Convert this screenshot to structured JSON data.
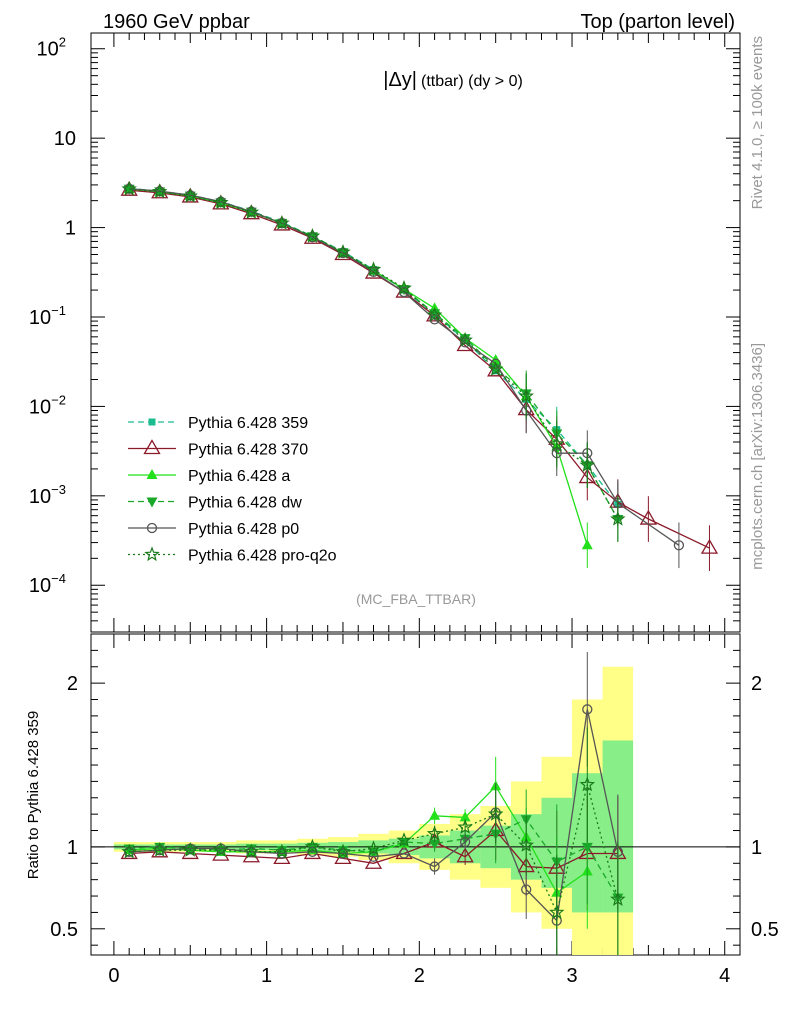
{
  "header": {
    "left": "1960 GeV ppbar",
    "right": "Top (parton level)"
  },
  "side_text": {
    "version": "Rivet 4.1.0, ≥ 100k events",
    "source": "mcplots.cern.ch [arXiv:1306.3436]"
  },
  "chart_data": [
    {
      "type": "line",
      "title_main": "|Δy|",
      "title_sub": "(ttbar) (dy > 0)",
      "analysis_label": "(MC_FBA_TTBAR)",
      "yscale": "log",
      "xlim": [
        -0.15,
        4.1
      ],
      "ylim": [
        3e-05,
        150
      ],
      "x_ticks": [
        "0",
        "1",
        "2",
        "3",
        "4"
      ],
      "y_ticks": [
        {
          "value": 100,
          "base": "10",
          "exp": "2"
        },
        {
          "value": 10,
          "base": "10",
          "exp": ""
        },
        {
          "value": 1,
          "base": "1",
          "exp": ""
        },
        {
          "value": 0.1,
          "base": "10",
          "exp": "−1"
        },
        {
          "value": 0.01,
          "base": "10",
          "exp": "−2"
        },
        {
          "value": 0.001,
          "base": "10",
          "exp": "−3"
        },
        {
          "value": 0.0001,
          "base": "10",
          "exp": "−4"
        }
      ],
      "series": [
        {
          "name": "Pythia 6.428 359",
          "color": "#1abc8f",
          "dash": "6,4",
          "marker": "square",
          "x": [
            0.1,
            0.3,
            0.5,
            0.7,
            0.9,
            1.1,
            1.3,
            1.5,
            1.7,
            1.9,
            2.1,
            2.3,
            2.5,
            2.7,
            2.9,
            3.1,
            3.3
          ],
          "y": [
            2.75,
            2.55,
            2.3,
            1.95,
            1.53,
            1.15,
            0.8,
            0.54,
            0.34,
            0.2,
            0.108,
            0.055,
            0.025,
            0.012,
            0.0055,
            0.0022,
            0.0008
          ]
        },
        {
          "name": "Pythia 6.428 370",
          "color": "#8b1a2b",
          "dash": "",
          "marker": "triangle-open",
          "x": [
            0.1,
            0.3,
            0.5,
            0.7,
            0.9,
            1.1,
            1.3,
            1.5,
            1.7,
            1.9,
            2.1,
            2.3,
            2.5,
            2.7,
            2.9,
            3.1,
            3.3,
            3.5,
            3.9
          ],
          "y": [
            2.62,
            2.45,
            2.2,
            1.84,
            1.43,
            1.07,
            0.76,
            0.5,
            0.31,
            0.19,
            0.103,
            0.048,
            0.025,
            0.0092,
            0.0043,
            0.0016,
            0.00085,
            0.00055,
            0.00026
          ]
        },
        {
          "name": "Pythia 6.428 a",
          "color": "#22e01a",
          "dash": "",
          "marker": "triangle",
          "x": [
            0.1,
            0.3,
            0.5,
            0.7,
            0.9,
            1.1,
            1.3,
            1.5,
            1.7,
            1.9,
            2.1,
            2.3,
            2.5,
            2.7,
            2.9,
            3.1
          ],
          "y": [
            2.7,
            2.52,
            2.26,
            1.9,
            1.49,
            1.12,
            0.79,
            0.52,
            0.33,
            0.205,
            0.125,
            0.058,
            0.033,
            0.013,
            0.0035,
            0.00028
          ]
        },
        {
          "name": "Pythia 6.428 dw",
          "color": "#1aa82a",
          "dash": "6,4",
          "marker": "triangle-down",
          "x": [
            0.1,
            0.3,
            0.5,
            0.7,
            0.9,
            1.1,
            1.3,
            1.5,
            1.7,
            1.9,
            2.1,
            2.3,
            2.5,
            2.7,
            2.9,
            3.1,
            3.3
          ],
          "y": [
            2.72,
            2.54,
            2.28,
            1.92,
            1.51,
            1.13,
            0.8,
            0.53,
            0.33,
            0.205,
            0.11,
            0.058,
            0.027,
            0.014,
            0.005,
            0.0022,
            0.00055
          ]
        },
        {
          "name": "Pythia 6.428 p0",
          "color": "#555555",
          "dash": "",
          "marker": "circle-open",
          "x": [
            0.1,
            0.3,
            0.5,
            0.7,
            0.9,
            1.1,
            1.3,
            1.5,
            1.7,
            1.9,
            2.1,
            2.3,
            2.5,
            2.7,
            2.9,
            3.1,
            3.3,
            3.7
          ],
          "y": [
            2.72,
            2.55,
            2.3,
            1.95,
            1.51,
            1.12,
            0.78,
            0.52,
            0.32,
            0.19,
            0.094,
            0.052,
            0.03,
            0.009,
            0.003,
            0.003,
            0.00083,
            0.00028
          ]
        },
        {
          "name": "Pythia 6.428 pro-q2o",
          "color": "#1a7a1a",
          "dash": "2,3",
          "marker": "star",
          "x": [
            0.1,
            0.3,
            0.5,
            0.7,
            0.9,
            1.1,
            1.3,
            1.5,
            1.7,
            1.9,
            2.1,
            2.3,
            2.5,
            2.7,
            2.9,
            3.1,
            3.3
          ],
          "y": [
            2.7,
            2.52,
            2.25,
            1.9,
            1.48,
            1.12,
            0.8,
            0.53,
            0.34,
            0.21,
            0.105,
            0.055,
            0.026,
            0.013,
            0.0038,
            0.0022,
            0.00055
          ]
        }
      ]
    },
    {
      "type": "line",
      "ylabel": "Ratio to Pythia 6.428 359",
      "ylim": [
        0.34,
        2.3
      ],
      "xlim": [
        -0.15,
        4.1
      ],
      "x_ticks": [
        "0",
        "1",
        "2",
        "3",
        "4"
      ],
      "y_ticks": [
        "0.5",
        "1",
        "2"
      ],
      "reference_line": 1,
      "band_edges": [
        0.0,
        0.2,
        0.4,
        0.6,
        0.8,
        1.0,
        1.2,
        1.4,
        1.6,
        1.8,
        2.0,
        2.2,
        2.4,
        2.6,
        2.8,
        3.0,
        3.2,
        3.4
      ],
      "band_inner": [
        [
          0.985,
          1.015
        ],
        [
          0.985,
          1.015
        ],
        [
          0.985,
          1.015
        ],
        [
          0.985,
          1.015
        ],
        [
          0.98,
          1.02
        ],
        [
          0.98,
          1.02
        ],
        [
          0.975,
          1.025
        ],
        [
          0.97,
          1.03
        ],
        [
          0.96,
          1.04
        ],
        [
          0.95,
          1.05
        ],
        [
          0.93,
          1.07
        ],
        [
          0.9,
          1.1
        ],
        [
          0.87,
          1.13
        ],
        [
          0.8,
          1.2
        ],
        [
          0.75,
          1.3
        ],
        [
          0.6,
          1.45
        ],
        [
          0.6,
          1.65
        ]
      ],
      "band_outer": [
        [
          0.97,
          1.03
        ],
        [
          0.97,
          1.03
        ],
        [
          0.97,
          1.03
        ],
        [
          0.97,
          1.03
        ],
        [
          0.96,
          1.04
        ],
        [
          0.96,
          1.04
        ],
        [
          0.95,
          1.05
        ],
        [
          0.94,
          1.06
        ],
        [
          0.92,
          1.08
        ],
        [
          0.9,
          1.1
        ],
        [
          0.86,
          1.14
        ],
        [
          0.8,
          1.2
        ],
        [
          0.75,
          1.25
        ],
        [
          0.6,
          1.4
        ],
        [
          0.5,
          1.55
        ],
        [
          0.34,
          1.9
        ],
        [
          0.34,
          2.1
        ]
      ],
      "series": [
        {
          "name": "Pythia 6.428 370",
          "color": "#8b1a2b",
          "dash": "",
          "marker": "triangle-open",
          "x": [
            0.1,
            0.3,
            0.5,
            0.7,
            0.9,
            1.1,
            1.3,
            1.5,
            1.7,
            1.9,
            2.1,
            2.3,
            2.5,
            2.7,
            2.9,
            3.1,
            3.3
          ],
          "y": [
            0.96,
            0.97,
            0.96,
            0.95,
            0.94,
            0.93,
            0.96,
            0.93,
            0.9,
            0.96,
            1.03,
            0.94,
            1.1,
            0.88,
            0.87,
            0.96,
            0.96
          ]
        },
        {
          "name": "Pythia 6.428 a",
          "color": "#22e01a",
          "dash": "",
          "marker": "triangle",
          "x": [
            0.1,
            0.3,
            0.5,
            0.7,
            0.9,
            1.1,
            1.3,
            1.5,
            1.7,
            1.9,
            2.1,
            2.3,
            2.5,
            2.7,
            2.9,
            3.1
          ],
          "y": [
            0.98,
            0.99,
            0.98,
            0.97,
            0.97,
            0.97,
            0.98,
            0.96,
            0.97,
            1.02,
            1.19,
            1.18,
            1.37,
            1.06,
            0.72,
            0.85
          ]
        },
        {
          "name": "Pythia 6.428 dw",
          "color": "#1aa82a",
          "dash": "6,4",
          "marker": "triangle-down",
          "x": [
            0.1,
            0.3,
            0.5,
            0.7,
            0.9,
            1.1,
            1.3,
            1.5,
            1.7,
            1.9,
            2.1,
            2.3,
            2.5,
            2.7,
            2.9,
            3.1,
            3.3
          ],
          "y": [
            0.99,
            1.0,
            0.99,
            0.98,
            0.99,
            0.98,
            1.0,
            0.98,
            0.97,
            1.03,
            1.02,
            1.05,
            1.08,
            1.17,
            0.91,
            1.0,
            0.69
          ]
        },
        {
          "name": "Pythia 6.428 p0",
          "color": "#555555",
          "dash": "",
          "marker": "circle-open",
          "x": [
            0.1,
            0.3,
            0.5,
            0.7,
            0.9,
            1.1,
            1.3,
            1.5,
            1.7,
            1.9,
            2.1,
            2.3,
            2.5,
            2.7,
            2.9,
            3.1,
            3.3
          ],
          "y": [
            0.97,
            0.98,
            0.99,
            0.99,
            0.97,
            0.96,
            0.97,
            0.96,
            0.94,
            0.96,
            0.88,
            1.03,
            1.21,
            0.74,
            0.55,
            1.84,
            0.97
          ]
        },
        {
          "name": "Pythia 6.428 pro-q2o",
          "color": "#1a7a1a",
          "dash": "2,3",
          "marker": "star",
          "x": [
            0.1,
            0.3,
            0.5,
            0.7,
            0.9,
            1.1,
            1.3,
            1.5,
            1.7,
            1.9,
            2.1,
            2.3,
            2.5,
            2.7,
            2.9,
            3.1,
            3.3
          ],
          "y": [
            0.97,
            0.98,
            0.98,
            0.98,
            0.97,
            0.97,
            1.0,
            0.97,
            0.99,
            1.04,
            1.08,
            1.12,
            1.2,
            1.01,
            0.6,
            1.38,
            0.68
          ]
        }
      ]
    }
  ]
}
